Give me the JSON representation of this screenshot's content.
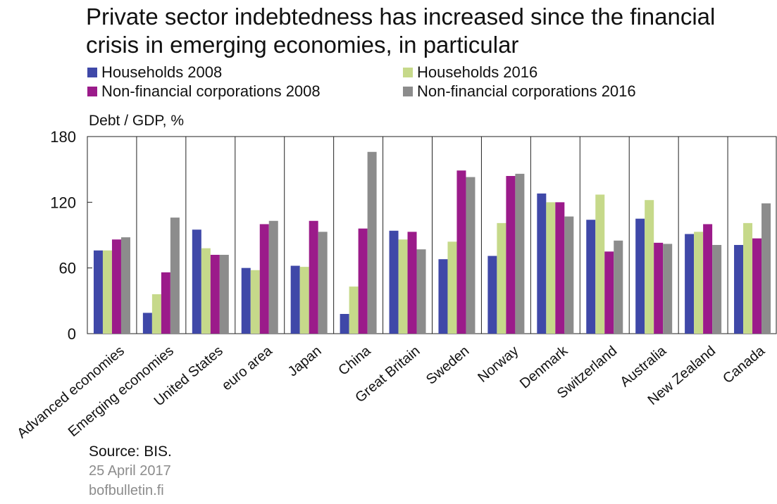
{
  "title": "Private sector indebtedness has increased since the financial crisis in emerging economies, in particular",
  "unit_label": "Debt / GDP, %",
  "source": "Source: BIS.",
  "date": "25 April 2017",
  "site": "bofbulletin.fi",
  "colors": {
    "households_2008": "#3f48a8",
    "households_2016": "#c6d98a",
    "nfc_2008": "#9b1b8a",
    "nfc_2016": "#8c8c8c"
  },
  "chart_data": {
    "type": "bar",
    "ylim": [
      0,
      180
    ],
    "yticks": [
      0,
      60,
      120,
      180
    ],
    "grid": false,
    "legend_position": "top",
    "ylabel": "Debt / GDP, %",
    "categories": [
      "Advanced economies",
      "Emerging economies",
      "United States",
      "euro area",
      "Japan",
      "China",
      "Great Britain",
      "Sweden",
      "Norway",
      "Denmark",
      "Switzerland",
      "Australia",
      "New Zealand",
      "Canada"
    ],
    "series": [
      {
        "name": "Households 2008",
        "color": "#3f48a8",
        "values": [
          76,
          19,
          95,
          60,
          62,
          18,
          94,
          68,
          71,
          128,
          104,
          105,
          91,
          81
        ]
      },
      {
        "name": "Households 2016",
        "color": "#c6d98a",
        "values": [
          76,
          36,
          78,
          58,
          61,
          43,
          86,
          84,
          101,
          120,
          127,
          122,
          93,
          101
        ]
      },
      {
        "name": "Non-financial corporations 2008",
        "color": "#9b1b8a",
        "values": [
          86,
          56,
          72,
          100,
          103,
          96,
          93,
          149,
          144,
          120,
          75,
          83,
          100,
          87
        ]
      },
      {
        "name": "Non-financial corporations 2016",
        "color": "#8c8c8c",
        "values": [
          88,
          106,
          72,
          103,
          93,
          166,
          77,
          143,
          146,
          107,
          85,
          82,
          81,
          119
        ]
      }
    ]
  }
}
